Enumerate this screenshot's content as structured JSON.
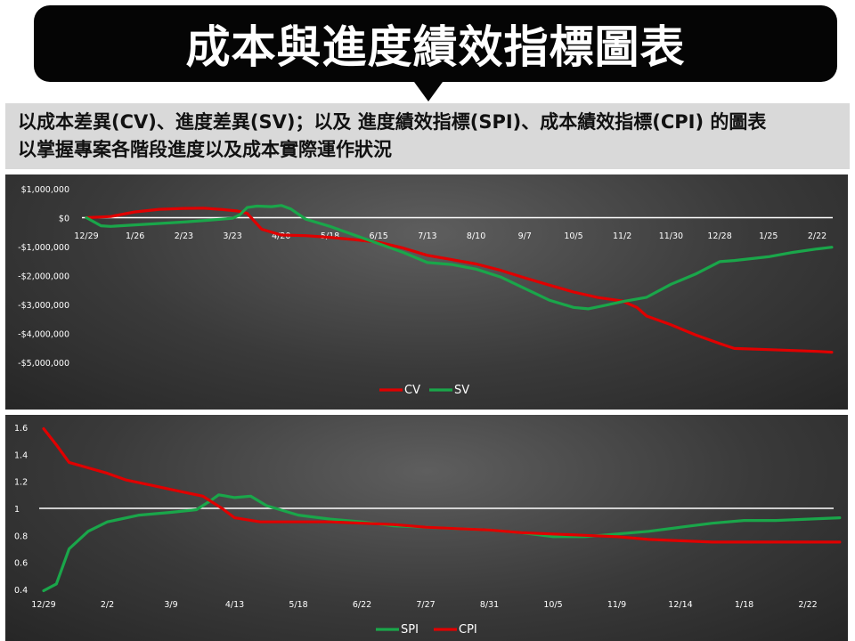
{
  "title": "成本與進度績效指標圖表",
  "subtitle": {
    "line1": "以成本差異(CV)、進度差異(SV)；以及 進度績效指標(SPI)、成本績效指標(CPI) 的圖表",
    "line2": "以掌握專案各階段進度以及成本實際運作狀況"
  },
  "colors": {
    "red": "#e00000",
    "green": "#1aa64a",
    "zero_line": "#ffffff"
  },
  "chart_data": [
    {
      "type": "line",
      "y_tick_labels": [
        "$1,000,000",
        "$0",
        "-$1,000,000",
        "-$2,000,000",
        "-$3,000,000",
        "-$4,000,000",
        "-$5,000,000"
      ],
      "y_ticks": [
        1000000,
        0,
        -1000000,
        -2000000,
        -3000000,
        -4000000,
        -5000000
      ],
      "ylim": [
        -5000000,
        1000000
      ],
      "x_tick_labels": [
        "12/29",
        "1/26",
        "2/23",
        "3/23",
        "4/20",
        "5/18",
        "6/15",
        "7/13",
        "8/10",
        "9/7",
        "10/5",
        "11/2",
        "11/30",
        "12/28",
        "1/25",
        "2/22"
      ],
      "legend_position": "bottom",
      "series": [
        {
          "name": "CV",
          "color": "#e00000",
          "points": [
            [
              0,
              0
            ],
            [
              0.5,
              40000
            ],
            [
              1,
              200000
            ],
            [
              1.5,
              290000
            ],
            [
              2,
              320000
            ],
            [
              2.4,
              330000
            ],
            [
              2.8,
              280000
            ],
            [
              3.1,
              230000
            ],
            [
              3.3,
              150000
            ],
            [
              3.6,
              -400000
            ],
            [
              4,
              -600000
            ],
            [
              4.5,
              -620000
            ],
            [
              5,
              -680000
            ],
            [
              5.5,
              -760000
            ],
            [
              6,
              -850000
            ],
            [
              6.5,
              -1050000
            ],
            [
              7,
              -1300000
            ],
            [
              7.5,
              -1450000
            ],
            [
              8,
              -1600000
            ],
            [
              8.5,
              -1820000
            ],
            [
              9,
              -2080000
            ],
            [
              9.5,
              -2330000
            ],
            [
              10,
              -2570000
            ],
            [
              10.5,
              -2760000
            ],
            [
              11,
              -2880000
            ],
            [
              11.3,
              -3100000
            ],
            [
              11.5,
              -3400000
            ],
            [
              12,
              -3700000
            ],
            [
              12.5,
              -4050000
            ],
            [
              13,
              -4350000
            ],
            [
              13.3,
              -4520000
            ],
            [
              14,
              -4560000
            ],
            [
              14.5,
              -4590000
            ],
            [
              15,
              -4620000
            ],
            [
              15.3,
              -4650000
            ]
          ]
        },
        {
          "name": "SV",
          "color": "#1aa64a",
          "points": [
            [
              0,
              0
            ],
            [
              0.3,
              -280000
            ],
            [
              0.5,
              -300000
            ],
            [
              1,
              -250000
            ],
            [
              1.5,
              -200000
            ],
            [
              2,
              -150000
            ],
            [
              2.5,
              -90000
            ],
            [
              3,
              -20000
            ],
            [
              3.15,
              100000
            ],
            [
              3.3,
              350000
            ],
            [
              3.5,
              400000
            ],
            [
              3.8,
              380000
            ],
            [
              4,
              420000
            ],
            [
              4.2,
              300000
            ],
            [
              4.5,
              -50000
            ],
            [
              5,
              -300000
            ],
            [
              5.5,
              -600000
            ],
            [
              6,
              -900000
            ],
            [
              6.5,
              -1200000
            ],
            [
              7,
              -1550000
            ],
            [
              7.5,
              -1620000
            ],
            [
              8,
              -1780000
            ],
            [
              8.5,
              -2050000
            ],
            [
              9,
              -2450000
            ],
            [
              9.5,
              -2850000
            ],
            [
              10,
              -3100000
            ],
            [
              10.3,
              -3150000
            ],
            [
              10.6,
              -3050000
            ],
            [
              11,
              -2900000
            ],
            [
              11.5,
              -2750000
            ],
            [
              12,
              -2300000
            ],
            [
              12.5,
              -1950000
            ],
            [
              13,
              -1520000
            ],
            [
              13.3,
              -1480000
            ],
            [
              14,
              -1350000
            ],
            [
              14.5,
              -1200000
            ],
            [
              15,
              -1080000
            ],
            [
              15.3,
              -1020000
            ]
          ]
        }
      ]
    },
    {
      "type": "line",
      "y_tick_labels": [
        "1.6",
        "1.4",
        "1.2",
        "1",
        "0.8",
        "0.6",
        "0.4"
      ],
      "y_ticks": [
        1.6,
        1.4,
        1.2,
        1.0,
        0.8,
        0.6,
        0.4
      ],
      "ylim": [
        0.4,
        1.6
      ],
      "x_tick_labels": [
        "12/29",
        "2/2",
        "3/9",
        "4/13",
        "5/18",
        "6/22",
        "7/27",
        "8/31",
        "10/5",
        "11/9",
        "12/14",
        "1/18",
        "2/22"
      ],
      "legend_position": "bottom",
      "series": [
        {
          "name": "SPI",
          "color": "#1aa64a",
          "points": [
            [
              0,
              0.39
            ],
            [
              0.2,
              0.44
            ],
            [
              0.4,
              0.7
            ],
            [
              0.7,
              0.83
            ],
            [
              1,
              0.9
            ],
            [
              1.5,
              0.95
            ],
            [
              2,
              0.97
            ],
            [
              2.4,
              0.99
            ],
            [
              2.6,
              1.05
            ],
            [
              2.75,
              1.1
            ],
            [
              3,
              1.08
            ],
            [
              3.25,
              1.09
            ],
            [
              3.5,
              1.02
            ],
            [
              4,
              0.95
            ],
            [
              4.5,
              0.92
            ],
            [
              5,
              0.9
            ],
            [
              5.5,
              0.87
            ],
            [
              6,
              0.86
            ],
            [
              6.5,
              0.85
            ],
            [
              7,
              0.84
            ],
            [
              7.5,
              0.82
            ],
            [
              8,
              0.79
            ],
            [
              8.5,
              0.79
            ],
            [
              9,
              0.81
            ],
            [
              9.5,
              0.83
            ],
            [
              10,
              0.86
            ],
            [
              10.5,
              0.89
            ],
            [
              11,
              0.91
            ],
            [
              11.5,
              0.91
            ],
            [
              12,
              0.92
            ],
            [
              12.5,
              0.93
            ]
          ]
        },
        {
          "name": "CPI",
          "color": "#e00000",
          "points": [
            [
              0,
              1.59
            ],
            [
              0.2,
              1.47
            ],
            [
              0.4,
              1.34
            ],
            [
              0.7,
              1.3
            ],
            [
              1,
              1.26
            ],
            [
              1.3,
              1.21
            ],
            [
              1.7,
              1.17
            ],
            [
              2,
              1.14
            ],
            [
              2.3,
              1.11
            ],
            [
              2.5,
              1.09
            ],
            [
              2.8,
              1.0
            ],
            [
              3,
              0.93
            ],
            [
              3.4,
              0.9
            ],
            [
              4,
              0.9
            ],
            [
              4.5,
              0.9
            ],
            [
              5,
              0.89
            ],
            [
              5.5,
              0.88
            ],
            [
              6,
              0.86
            ],
            [
              6.5,
              0.85
            ],
            [
              7,
              0.84
            ],
            [
              7.5,
              0.82
            ],
            [
              8,
              0.81
            ],
            [
              8.5,
              0.8
            ],
            [
              9,
              0.79
            ],
            [
              9.5,
              0.77
            ],
            [
              10,
              0.76
            ],
            [
              10.5,
              0.75
            ],
            [
              11,
              0.75
            ],
            [
              11.5,
              0.75
            ],
            [
              12,
              0.75
            ],
            [
              12.5,
              0.75
            ]
          ]
        }
      ]
    }
  ]
}
